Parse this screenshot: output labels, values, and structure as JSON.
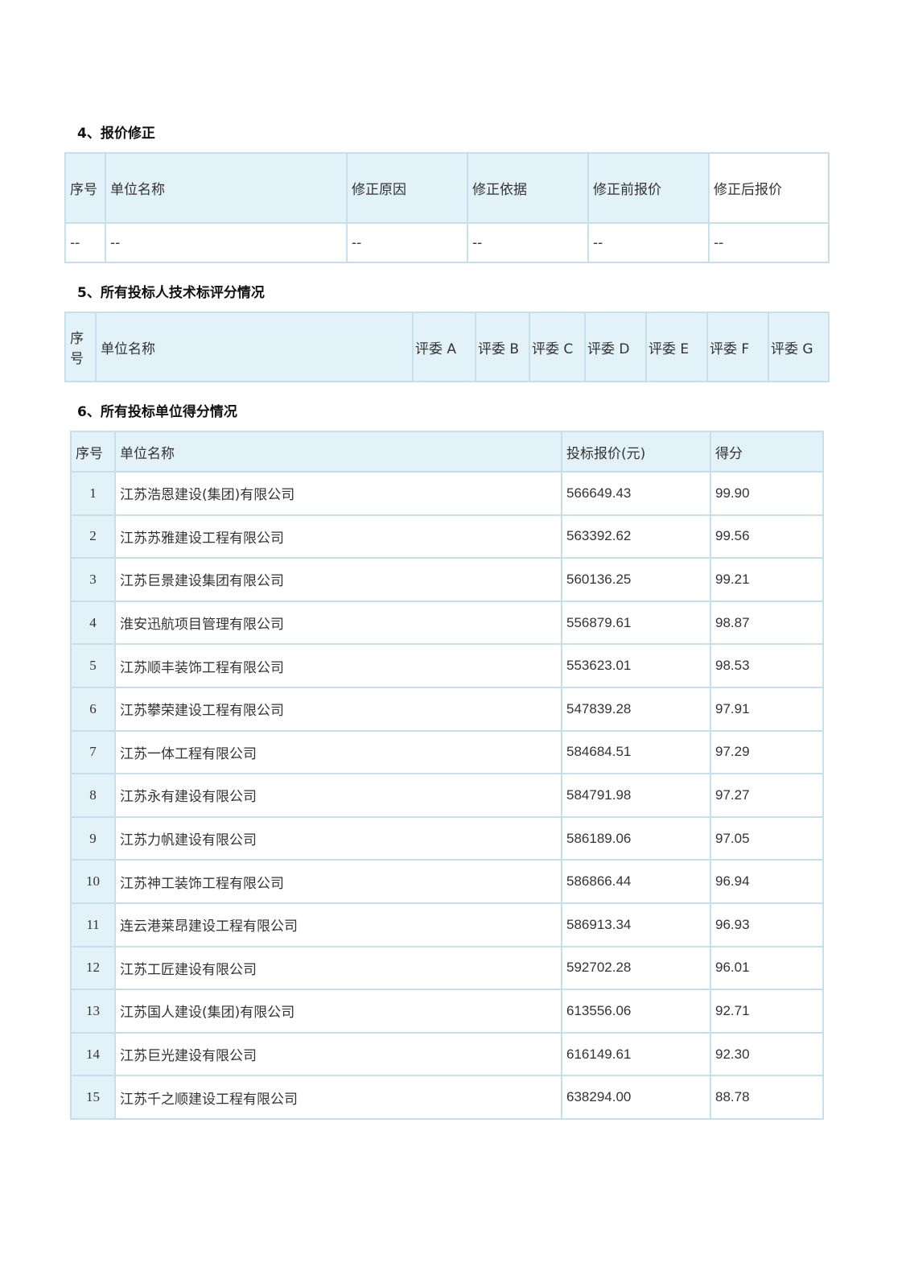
{
  "section4": {
    "title": "4、报价修正",
    "headers": [
      "序号",
      "单位名称",
      "修正原因",
      "修正依据",
      "修正前报价",
      "修正后报价"
    ],
    "rows": [
      [
        "--",
        "--",
        "--",
        "--",
        "--",
        "--"
      ]
    ]
  },
  "section5": {
    "title": "5、所有投标人技术标评分情况",
    "headers": [
      "序号",
      "单位名称",
      "评委 A",
      "评委 B",
      "评委 C",
      "评委 D",
      "评委 E",
      "评委 F",
      "评委 G"
    ]
  },
  "section6": {
    "title": "6、所有投标单位得分情况",
    "headers": [
      "序号",
      "单位名称",
      "投标报价(元)",
      "得分"
    ],
    "rows": [
      [
        "1",
        "江苏浩恩建设(集团)有限公司",
        "566649.43",
        "99.90"
      ],
      [
        "2",
        "江苏苏雅建设工程有限公司",
        "563392.62",
        "99.56"
      ],
      [
        "3",
        "江苏巨景建设集团有限公司",
        "560136.25",
        "99.21"
      ],
      [
        "4",
        "淮安迅航项目管理有限公司",
        "556879.61",
        "98.87"
      ],
      [
        "5",
        "江苏顺丰装饰工程有限公司",
        "553623.01",
        "98.53"
      ],
      [
        "6",
        "江苏攀荣建设工程有限公司",
        "547839.28",
        "97.91"
      ],
      [
        "7",
        "江苏一体工程有限公司",
        "584684.51",
        "97.29"
      ],
      [
        "8",
        "江苏永有建设有限公司",
        "584791.98",
        "97.27"
      ],
      [
        "9",
        "江苏力帆建设有限公司",
        "586189.06",
        "97.05"
      ],
      [
        "10",
        "江苏神工装饰工程有限公司",
        "586866.44",
        "96.94"
      ],
      [
        "11",
        "连云港莱昂建设工程有限公司",
        "586913.34",
        "96.93"
      ],
      [
        "12",
        "江苏工匠建设有限公司",
        "592702.28",
        "96.01"
      ],
      [
        "13",
        "江苏国人建设(集团)有限公司",
        "613556.06",
        "92.71"
      ],
      [
        "14",
        "江苏巨光建设有限公司",
        "616149.61",
        "92.30"
      ],
      [
        "15",
        "江苏千之顺建设工程有限公司",
        "638294.00",
        "88.78"
      ]
    ]
  }
}
